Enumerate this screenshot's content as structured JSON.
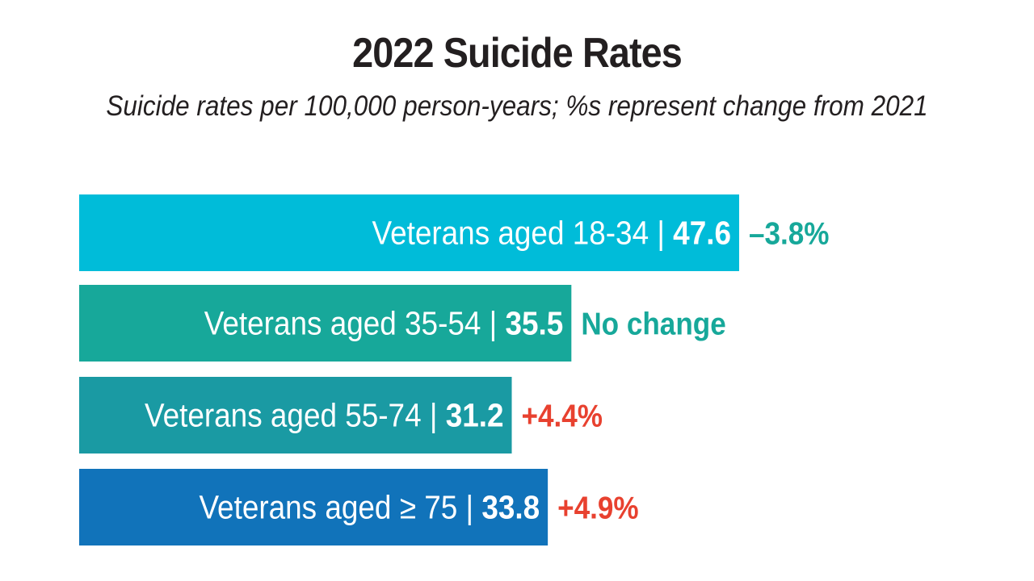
{
  "chart_data": {
    "type": "bar",
    "orientation": "horizontal",
    "title": "2022 Suicide Rates",
    "subtitle": "Suicide rates per 100,000 person-years; %s represent change from 2021",
    "categories": [
      "Veterans aged 18-34",
      "Veterans aged 35-54",
      "Veterans aged 55-74",
      "Veterans aged ≥ 75"
    ],
    "values": [
      47.6,
      35.5,
      31.2,
      33.8
    ],
    "value_labels": [
      "47.6",
      "35.5",
      "31.2",
      "33.8"
    ],
    "changes": [
      "–3.8%",
      "No change",
      "+4.4%",
      "+4.9%"
    ],
    "bar_colors": [
      "#00bcd9",
      "#17a89a",
      "#1a9aa3",
      "#1173ba"
    ],
    "change_colors": [
      "#17a89a",
      "#17a89a",
      "#e8412f",
      "#e8412f"
    ],
    "xlim": [
      0,
      47.6
    ],
    "grid": false,
    "legend": "none"
  }
}
